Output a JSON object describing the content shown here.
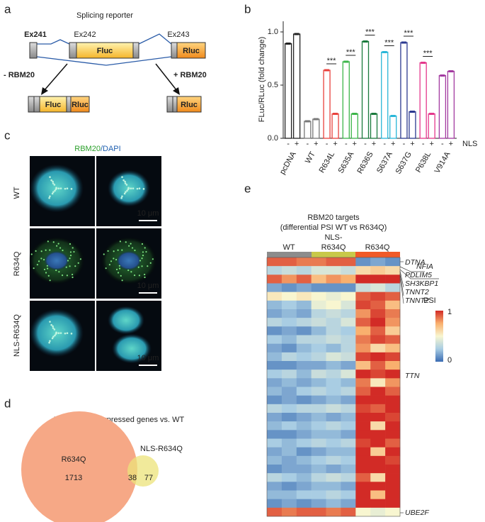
{
  "panel_labels": [
    "a",
    "b",
    "c",
    "d",
    "e"
  ],
  "panel_a": {
    "title": "Splicing reporter",
    "exons": [
      "Ex241",
      "Ex242",
      "Ex243"
    ],
    "fluc": "Fluc",
    "rluc": "Rluc",
    "minus": "- RBM20",
    "plus": "+ RBM20"
  },
  "chart_data": {
    "type": "bar",
    "ylabel": "FLuc/RLuc (fold change)",
    "categories": [
      "pcDNA",
      "WT",
      "R634L",
      "S635A",
      "R636S",
      "S637A",
      "S637G",
      "P638L",
      "V914A"
    ],
    "colors": [
      "#222222",
      "#777777",
      "#e8413c",
      "#3cb54a",
      "#1a7a3c",
      "#29b6d8",
      "#2b3990",
      "#e4388c",
      "#a33aa0"
    ],
    "series": [
      {
        "name": "-",
        "values": [
          0.89,
          0.16,
          0.64,
          0.72,
          0.91,
          0.81,
          0.9,
          0.71,
          0.59
        ]
      },
      {
        "name": "+",
        "values": [
          0.98,
          0.18,
          0.23,
          0.23,
          0.23,
          0.21,
          0.25,
          0.23,
          0.63
        ]
      }
    ],
    "significance": [
      null,
      null,
      "***",
      "***",
      "***",
      "***",
      "***",
      "***",
      null
    ],
    "group_label": "NLS",
    "ylim": [
      0,
      1.1
    ],
    "yticks": [
      {
        "value": 0,
        "label": "0.0"
      },
      {
        "value": 0.5,
        "label": "0.5"
      },
      {
        "value": 1,
        "label": "1.0"
      }
    ]
  },
  "panel_c": {
    "title_a": "RBM20",
    "title_b": "/DAPI",
    "rows": [
      "WT",
      "R634Q",
      "NLS-R634Q"
    ],
    "scale": "10 μm"
  },
  "panel_d": {
    "title": "Differentially expressed genes vs. WT",
    "sets": [
      "R634Q",
      "NLS-R634Q"
    ],
    "counts": [
      1713,
      38,
      77
    ]
  },
  "panel_e": {
    "title": "RBM20 targets",
    "subtitle": "(differential PSI WT vs R634Q)",
    "groups": [
      "WT",
      "NLS-",
      "R634Q",
      "R634Q"
    ],
    "genes": [
      "DTNA",
      "NFIA",
      "PDLIM5",
      "SH3KBP1",
      "TNNT2",
      "TNNT2",
      "TTN",
      "UBE2F"
    ],
    "legend": "PSI",
    "legend_max": 1,
    "legend_min": 0,
    "matrix": [
      [
        0.9,
        0.9,
        0.85,
        0.85,
        0.9,
        0.9,
        0.1,
        0.15,
        0.1
      ],
      [
        0.3,
        0.35,
        0.3,
        0.4,
        0.4,
        0.35,
        0.6,
        0.65,
        0.6
      ],
      [
        0.9,
        0.8,
        0.9,
        0.7,
        0.8,
        0.75,
        1,
        1,
        1
      ],
      [
        0.15,
        0.1,
        0.15,
        0.1,
        0.1,
        0.1,
        0.35,
        0.4,
        0.3
      ],
      [
        0.55,
        0.5,
        0.55,
        0.5,
        0.45,
        0.5,
        0.9,
        0.95,
        0.9
      ],
      [
        0.2,
        0.25,
        0.2,
        0.45,
        0.5,
        0.4,
        0.95,
        0.9,
        0.7
      ],
      [
        0.15,
        0.2,
        0.15,
        0.3,
        0.35,
        0.3,
        0.8,
        0.95,
        0.85
      ],
      [
        0.3,
        0.25,
        0.3,
        0.35,
        0.3,
        0.4,
        0.9,
        1,
        0.8
      ],
      [
        0.1,
        0.15,
        0.1,
        0.2,
        0.3,
        0.25,
        0.75,
        0.9,
        0.65
      ],
      [
        0.25,
        0.2,
        0.3,
        0.3,
        0.35,
        0.3,
        0.85,
        0.95,
        0.9
      ],
      [
        0.15,
        0.1,
        0.2,
        0.25,
        0.2,
        0.3,
        0.8,
        0.6,
        0.7
      ],
      [
        0.2,
        0.3,
        0.25,
        0.3,
        0.4,
        0.35,
        0.95,
        1,
        0.95
      ],
      [
        0.1,
        0.1,
        0.15,
        0.15,
        0.2,
        0.15,
        0.7,
        0.9,
        0.75
      ],
      [
        0.25,
        0.3,
        0.2,
        0.35,
        0.3,
        0.4,
        1,
        0.95,
        1
      ],
      [
        0.15,
        0.2,
        0.15,
        0.2,
        0.25,
        0.2,
        0.85,
        0.55,
        0.8
      ],
      [
        0.2,
        0.15,
        0.25,
        0.3,
        0.25,
        0.3,
        0.9,
        1,
        0.9
      ],
      [
        0.1,
        0.15,
        0.1,
        0.15,
        0.2,
        0.15,
        1,
        1,
        1
      ],
      [
        0.3,
        0.25,
        0.3,
        0.3,
        0.35,
        0.3,
        0.95,
        0.9,
        1
      ],
      [
        0.15,
        0.1,
        0.15,
        0.2,
        0.15,
        0.2,
        1,
        1,
        0.95
      ],
      [
        0.2,
        0.25,
        0.2,
        0.25,
        0.3,
        0.25,
        1,
        0.6,
        1
      ],
      [
        0.1,
        0.1,
        0.15,
        0.2,
        0.2,
        0.15,
        1,
        1,
        1
      ],
      [
        0.25,
        0.2,
        0.25,
        0.3,
        0.25,
        0.3,
        0.95,
        1,
        0.9
      ],
      [
        0.15,
        0.2,
        0.1,
        0.15,
        0.2,
        0.2,
        1,
        0.65,
        1
      ],
      [
        0.2,
        0.15,
        0.2,
        0.25,
        0.3,
        0.25,
        1,
        1,
        0.95
      ],
      [
        0.1,
        0.15,
        0.15,
        0.2,
        0.15,
        0.2,
        1,
        1,
        1
      ],
      [
        0.3,
        0.25,
        0.2,
        0.3,
        0.35,
        0.3,
        0.9,
        0.6,
        1
      ],
      [
        0.15,
        0.1,
        0.15,
        0.2,
        0.2,
        0.15,
        1,
        1,
        1
      ],
      [
        0.2,
        0.2,
        0.25,
        0.25,
        0.3,
        0.25,
        1,
        0.7,
        1
      ],
      [
        0.1,
        0.15,
        0.1,
        0.15,
        0.2,
        0.15,
        1,
        1,
        1
      ],
      [
        0.9,
        0.85,
        0.9,
        0.9,
        0.85,
        0.9,
        0.5,
        0.45,
        0.5
      ]
    ]
  }
}
